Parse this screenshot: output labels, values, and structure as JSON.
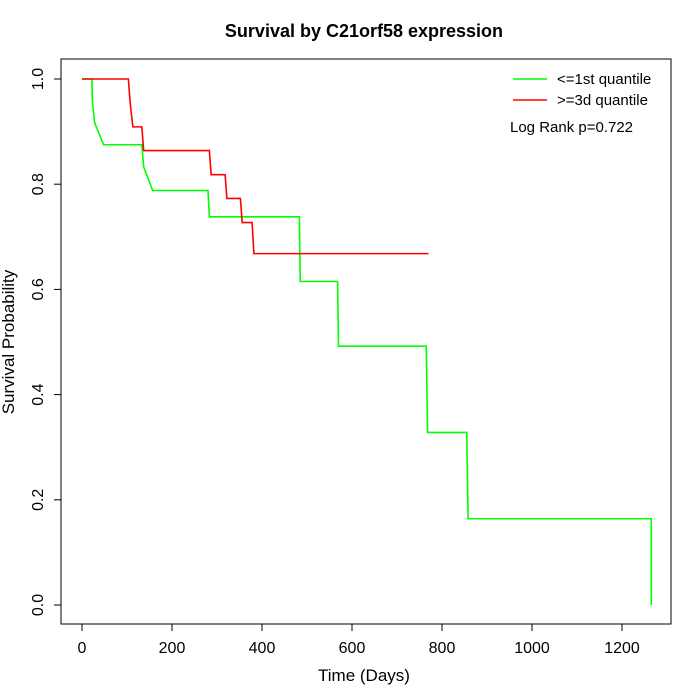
{
  "chart_data": {
    "type": "line",
    "title": "Survival by C21orf58 expression",
    "xlabel": "Time (Days)",
    "ylabel": "Survival Probability",
    "xlim": [
      0,
      1300
    ],
    "ylim": [
      0,
      1.0
    ],
    "x_ticks": [
      0,
      200,
      400,
      600,
      800,
      1000,
      1200
    ],
    "y_ticks": [
      0.0,
      0.2,
      0.4,
      0.6,
      0.8,
      1.0
    ],
    "x_tick_labels": [
      "0",
      "200",
      "400",
      "600",
      "800",
      "1000",
      "1200"
    ],
    "y_tick_labels": [
      "0.0",
      "0.2",
      "0.4",
      "0.6",
      "0.8",
      "1.0"
    ],
    "grid": false,
    "legend_position": "top-right",
    "annotation": "Log Rank p=0.722",
    "series": [
      {
        "name": "<=1st quantile",
        "color": "#00ff00",
        "step": true,
        "x": [
          0,
          22,
          23,
          28,
          48,
          133,
          137,
          157,
          280,
          283,
          483,
          485,
          568,
          570,
          765,
          768,
          855,
          858,
          1265,
          1265
        ],
        "y": [
          1.0,
          1.0,
          0.958,
          0.917,
          0.875,
          0.875,
          0.833,
          0.788,
          0.788,
          0.738,
          0.738,
          0.615,
          0.615,
          0.492,
          0.492,
          0.328,
          0.328,
          0.164,
          0.164,
          0.0
        ]
      },
      {
        "name": ">=3d quantile",
        "color": "#ff0000",
        "step": true,
        "x": [
          0,
          103,
          107,
          113,
          133,
          137,
          283,
          287,
          318,
          322,
          352,
          356,
          378,
          382,
          770
        ],
        "y": [
          1.0,
          1.0,
          0.955,
          0.909,
          0.909,
          0.864,
          0.864,
          0.818,
          0.818,
          0.773,
          0.773,
          0.727,
          0.727,
          0.668,
          0.668
        ]
      }
    ]
  }
}
